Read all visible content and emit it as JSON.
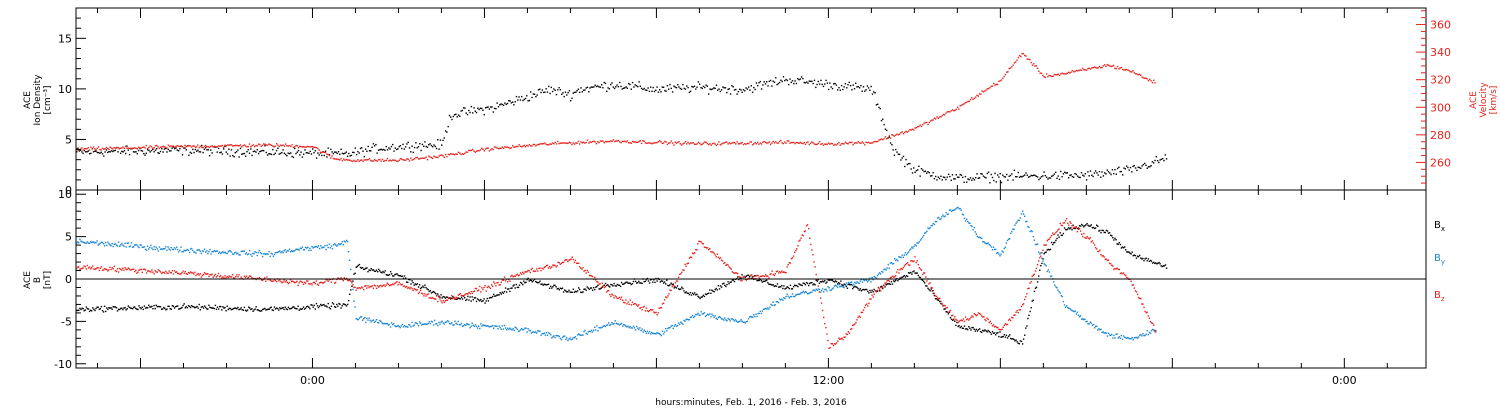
{
  "figure": {
    "xlabel": "hours:minutes, Feb.  1, 2016 - Feb.  3, 2016",
    "x_ticks": [
      {
        "hour": 0,
        "label": "0:00"
      },
      {
        "hour": 12,
        "label": "12:00"
      },
      {
        "hour": 24,
        "label": "0:00"
      }
    ]
  },
  "colors": {
    "black": "#000000",
    "red": "#e8231c",
    "blue": "#1a86d6"
  },
  "chart_data": [
    {
      "type": "scatter",
      "panel": "top",
      "xlim_hours": [
        -5.5,
        25.9
      ],
      "data_end_hour": 19.85,
      "left_axis": {
        "label_lines": [
          "ACE",
          "Ion Density",
          "[cm⁻³]"
        ],
        "ylim": [
          0,
          18
        ],
        "ticks": [
          0,
          5,
          10,
          15
        ],
        "tick_labels": [
          "0",
          "5",
          "10",
          "15"
        ]
      },
      "right_axis": {
        "label_lines": [
          "ACE",
          "Velocity",
          "[km/s]"
        ],
        "ylim": [
          240,
          372
        ],
        "ticks": [
          260,
          280,
          300,
          320,
          340,
          360
        ],
        "tick_labels": [
          "260",
          "280",
          "300",
          "320",
          "340",
          "360"
        ]
      },
      "series": [
        {
          "color": "black",
          "axis": "left",
          "x": [
            -5.5,
            -3.0,
            -1.0,
            0.8,
            1.5,
            2.5,
            3.0,
            3.2,
            4.2,
            5.5,
            6.0,
            6.2,
            7.0,
            8.0,
            9.0,
            10.0,
            11.0,
            12.0,
            13.0,
            13.5,
            14.0,
            14.5,
            15.0,
            16.0,
            18.0,
            19.0,
            19.85
          ],
          "y": [
            3.8,
            4.0,
            3.8,
            3.6,
            4.2,
            4.5,
            4.5,
            7.5,
            8.2,
            10.0,
            9.5,
            10.0,
            10.5,
            10.0,
            10.2,
            10.0,
            11.0,
            10.5,
            10.0,
            4.0,
            2.0,
            1.5,
            1.2,
            1.4,
            1.5,
            2.0,
            3.2
          ]
        },
        {
          "color": "red",
          "axis": "right",
          "x": [
            -5.5,
            -3.0,
            -1.0,
            0.0,
            0.5,
            1.0,
            2.0,
            3.0,
            4.0,
            5.5,
            7.0,
            9.0,
            11.0,
            12.0,
            13.0,
            13.5,
            14.0,
            15.0,
            15.5,
            16.0,
            16.5,
            17.0,
            17.5,
            18.0,
            18.5,
            19.0,
            19.6
          ],
          "y": [
            270,
            272,
            273,
            272,
            263,
            262,
            262,
            265,
            270,
            274,
            276,
            274,
            275,
            274,
            275,
            280,
            285,
            300,
            310,
            320,
            340,
            323,
            325,
            328,
            331,
            327,
            318
          ]
        }
      ]
    },
    {
      "type": "scatter",
      "panel": "bottom",
      "xlim_hours": [
        -5.5,
        25.9
      ],
      "data_end_hour": 19.85,
      "axis": {
        "label_lines": [
          "ACE",
          "B",
          "[nT]"
        ],
        "ylim": [
          -10.5,
          10.5
        ],
        "ticks": [
          -10,
          -5,
          0,
          5,
          10
        ],
        "tick_labels": [
          "-10",
          "-5",
          "0",
          "5",
          "10"
        ]
      },
      "zero_line": true,
      "series": [
        {
          "name": "Bx",
          "color": "black",
          "x": [
            -5.5,
            -3.0,
            -1.0,
            0.0,
            0.8,
            1.0,
            2.0,
            3.0,
            4.0,
            5.0,
            6.0,
            7.0,
            8.0,
            9.0,
            10.0,
            11.0,
            12.0,
            13.0,
            14.0,
            15.0,
            15.5,
            16.0,
            16.5,
            17.0,
            17.5,
            18.0,
            18.5,
            19.0,
            19.85
          ],
          "y": [
            -3.5,
            -3.2,
            -3.5,
            -3.2,
            -3.0,
            1.5,
            0.5,
            -2.0,
            -2.5,
            0.0,
            -1.5,
            -0.5,
            0.0,
            -2.0,
            0.5,
            -1.0,
            0.0,
            -1.5,
            1.0,
            -5.5,
            -6.0,
            -6.5,
            -7.5,
            3.0,
            6.0,
            6.5,
            5.5,
            3.0,
            1.5
          ]
        },
        {
          "name": "By",
          "color": "blue",
          "x": [
            -5.5,
            -3.0,
            -1.0,
            -0.5,
            0.5,
            0.8,
            1.0,
            2.0,
            3.0,
            4.0,
            5.0,
            6.0,
            7.0,
            8.0,
            9.0,
            10.0,
            11.0,
            12.0,
            13.0,
            14.0,
            14.5,
            15.0,
            15.5,
            16.0,
            16.5,
            17.0,
            17.5,
            18.0,
            18.5,
            19.0,
            19.6
          ],
          "y": [
            4.5,
            3.5,
            3.0,
            3.5,
            4.0,
            4.5,
            -4.5,
            -5.5,
            -5.0,
            -5.5,
            -6.0,
            -7.0,
            -5.0,
            -6.5,
            -4.0,
            -5.0,
            -2.0,
            -1.0,
            0.0,
            4.0,
            7.0,
            8.5,
            5.0,
            3.0,
            8.0,
            2.0,
            -3.0,
            -5.0,
            -6.5,
            -7.0,
            -6.0
          ]
        },
        {
          "name": "Bz",
          "color": "red",
          "x": [
            -5.5,
            -3.0,
            -1.0,
            0.0,
            0.8,
            1.0,
            2.0,
            3.0,
            4.0,
            5.0,
            5.5,
            6.0,
            7.0,
            8.0,
            9.0,
            10.0,
            11.0,
            11.5,
            12.0,
            12.5,
            13.0,
            13.5,
            14.0,
            14.5,
            15.0,
            15.5,
            16.0,
            16.5,
            17.0,
            17.5,
            18.0,
            18.5,
            19.0,
            19.6
          ],
          "y": [
            1.5,
            0.8,
            0.0,
            -0.5,
            0.2,
            -1.0,
            -0.5,
            -2.5,
            -1.0,
            1.0,
            1.5,
            2.5,
            -2.0,
            -4.0,
            4.5,
            0.0,
            1.0,
            6.5,
            -8.0,
            -6.0,
            -2.0,
            0.5,
            2.5,
            -2.0,
            -5.0,
            -4.0,
            -6.0,
            -3.0,
            4.0,
            7.0,
            5.0,
            2.0,
            0.0,
            -6.0
          ]
        }
      ],
      "legend": [
        {
          "letter": "B",
          "sub": "x",
          "color": "black"
        },
        {
          "letter": "B",
          "sub": "y",
          "color": "blue"
        },
        {
          "letter": "B",
          "sub": "z",
          "color": "red"
        }
      ]
    }
  ]
}
